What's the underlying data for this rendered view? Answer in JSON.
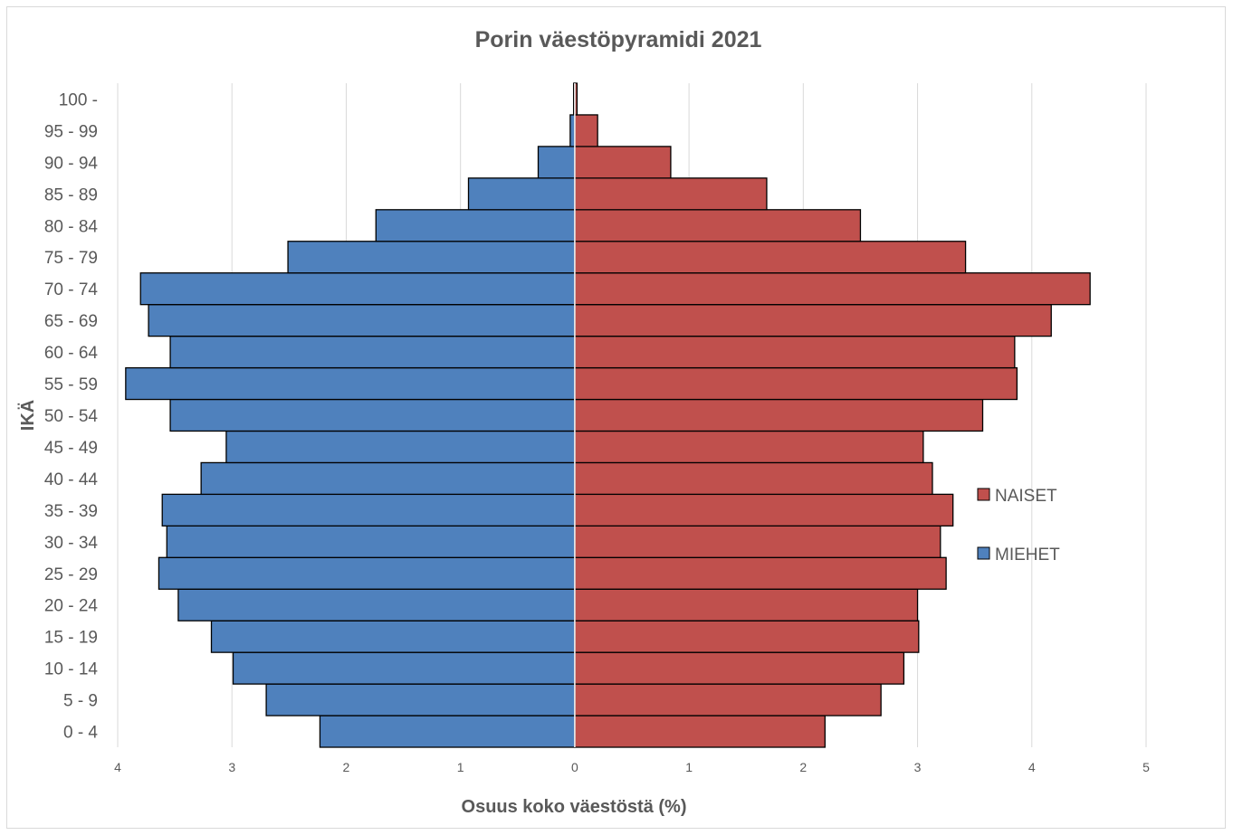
{
  "chart_data": {
    "type": "bar",
    "orientation": "horizontal",
    "title": "Porin väestöpyramidi 2021",
    "xlabel": "Osuus koko väestöstä (%)",
    "ylabel": "IKÄ",
    "xlim": [
      -4,
      5
    ],
    "x_ticks": [
      {
        "value": -4,
        "label": "4"
      },
      {
        "value": -3,
        "label": "3"
      },
      {
        "value": -2,
        "label": "2"
      },
      {
        "value": -1,
        "label": "1"
      },
      {
        "value": 0,
        "label": "0"
      },
      {
        "value": 1,
        "label": "1"
      },
      {
        "value": 2,
        "label": "2"
      },
      {
        "value": 3,
        "label": "3"
      },
      {
        "value": 4,
        "label": "4"
      },
      {
        "value": 5,
        "label": "5"
      }
    ],
    "grid": "vertical",
    "legend_position": "right",
    "categories": [
      "0 - 4",
      "5 - 9",
      "10 - 14",
      "15 - 19",
      "20 - 24",
      "25 - 29",
      "30 - 34",
      "35 - 39",
      "40 - 44",
      "45 - 49",
      "50 - 54",
      "55 - 59",
      "60 - 64",
      "65 - 69",
      "70 - 74",
      "75 - 79",
      "80 - 84",
      "85 - 89",
      "90 - 94",
      "95 - 99",
      "100 -"
    ],
    "series": [
      {
        "name": "NAISET",
        "color": "#c0504d",
        "values": [
          2.19,
          2.68,
          2.88,
          3.01,
          3.0,
          3.25,
          3.2,
          3.31,
          3.13,
          3.05,
          3.57,
          3.87,
          3.85,
          4.17,
          4.51,
          3.42,
          2.5,
          1.68,
          0.84,
          0.2,
          0.02
        ]
      },
      {
        "name": "MIEHET",
        "color": "#4f81bd",
        "values": [
          2.23,
          2.7,
          2.99,
          3.18,
          3.47,
          3.64,
          3.57,
          3.61,
          3.27,
          3.05,
          3.54,
          3.93,
          3.54,
          3.73,
          3.8,
          2.51,
          1.74,
          0.93,
          0.32,
          0.04,
          0.01
        ]
      }
    ]
  }
}
